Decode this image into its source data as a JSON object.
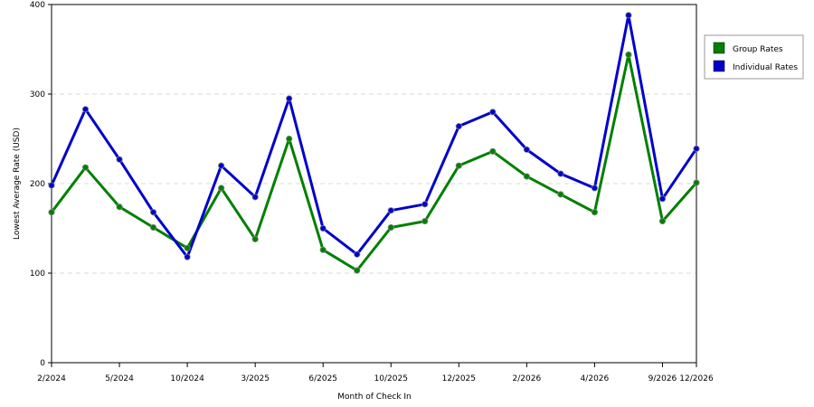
{
  "chart_data": {
    "type": "line",
    "title": "",
    "xlabel": "Month of Check In",
    "ylabel": "Lowest Average Rate (USD)",
    "ylim": [
      0,
      400
    ],
    "yticks": [
      0,
      100,
      200,
      300,
      400
    ],
    "grid": true,
    "legend_position": "right",
    "x_tick_labels": [
      "2/2024",
      "5/2024",
      "10/2024",
      "3/2025",
      "6/2025",
      "10/2025",
      "12/2025",
      "2/2026",
      "4/2026",
      "9/2026",
      "12/2026"
    ],
    "x_tick_indices": [
      0,
      2,
      4,
      6,
      8,
      10,
      12,
      14,
      16,
      18,
      19
    ],
    "series": [
      {
        "name": "Group Rates",
        "color": "#008000",
        "values": [
          168,
          218,
          174,
          151,
          128,
          195,
          138,
          250,
          126,
          103,
          151,
          158,
          220,
          236,
          208,
          188,
          168,
          344,
          158,
          201
        ]
      },
      {
        "name": "Individual Rates",
        "color": "#0000cc",
        "values": [
          198,
          283,
          227,
          168,
          118,
          220,
          185,
          295,
          150,
          121,
          170,
          177,
          264,
          280,
          238,
          211,
          195,
          388,
          183,
          239
        ]
      }
    ]
  }
}
